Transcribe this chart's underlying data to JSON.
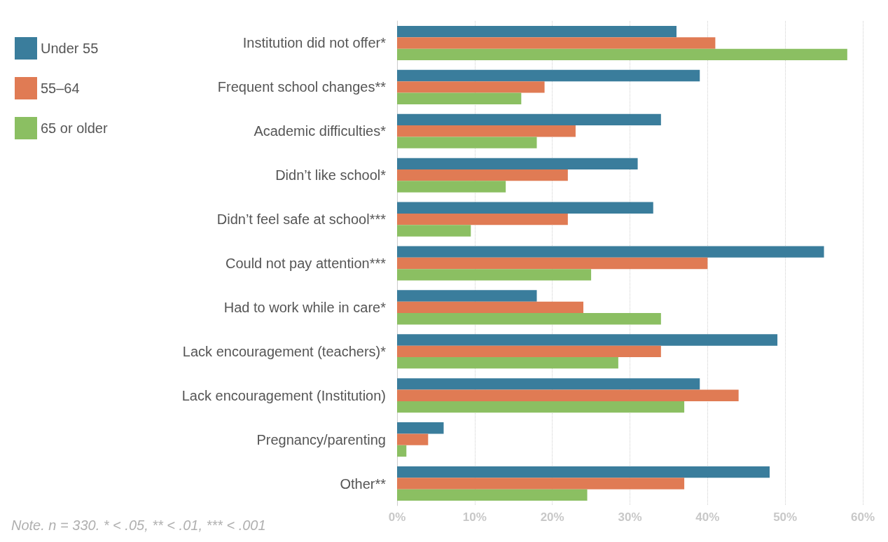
{
  "chart_data": {
    "type": "bar",
    "orientation": "horizontal",
    "categories": [
      "Institution did not offer*",
      "Frequent school changes**",
      "Academic difficulties*",
      "Didn’t like school*",
      "Didn’t feel safe at school***",
      "Could not pay attention***",
      "Had to work while in care*",
      "Lack encouragement (teachers)*",
      "Lack encouragement (Institution)",
      "Pregnancy/parenting",
      "Other**"
    ],
    "series": [
      {
        "name": "Under 55",
        "color": "#3a7d9c",
        "values": [
          36,
          39,
          34,
          31,
          33,
          55,
          18,
          49,
          39,
          6,
          48
        ]
      },
      {
        "name": "55–64",
        "color": "#e07b54",
        "values": [
          41,
          19,
          23,
          22,
          22,
          40,
          24,
          34,
          44,
          4,
          37
        ]
      },
      {
        "name": "65 or older",
        "color": "#8bbf62",
        "values": [
          58,
          16,
          18,
          14,
          9.5,
          25,
          34,
          28.5,
          37,
          1.2,
          24.5
        ]
      }
    ],
    "xlim": [
      0,
      60
    ],
    "xticks": [
      {
        "value": 0,
        "label": "0%"
      },
      {
        "value": 10,
        "label": "10%"
      },
      {
        "value": 20,
        "label": "20%"
      },
      {
        "value": 30,
        "label": "30%"
      },
      {
        "value": 40,
        "label": "40%"
      },
      {
        "value": 50,
        "label": "50%"
      },
      {
        "value": 60,
        "label": "60%"
      }
    ],
    "grid": "x",
    "legend": "left",
    "annotations": [
      "Note. n = 330. * < .05, ** < .01, *** < .001"
    ]
  }
}
